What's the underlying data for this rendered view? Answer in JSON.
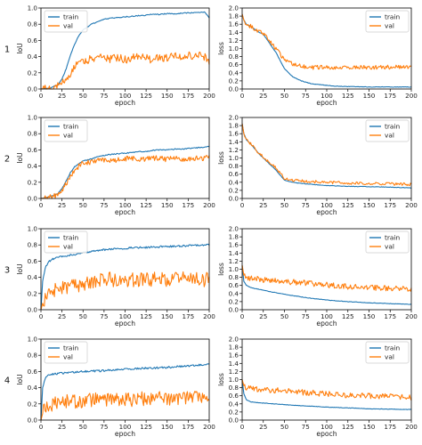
{
  "colors": {
    "train": "#1f77b4",
    "val": "#ff7f0e",
    "axes": "#000000",
    "legend_border": "#cccccc"
  },
  "chart_data": [
    {
      "type": "line",
      "row": "1",
      "panel": "left",
      "xlabel": "epoch",
      "ylabel": "IoU",
      "xlim": [
        0,
        200
      ],
      "ylim": [
        0,
        1.0
      ],
      "xticks": [
        "0",
        "25",
        "50",
        "75",
        "100",
        "125",
        "150",
        "175",
        "200"
      ],
      "yticks": [
        "0.0",
        "0.2",
        "0.4",
        "0.6",
        "0.8",
        "1.0"
      ],
      "legend_loc": "upper left",
      "grid": false,
      "x": [
        0,
        10,
        20,
        25,
        30,
        35,
        40,
        45,
        50,
        60,
        70,
        75,
        80,
        90,
        100,
        110,
        120,
        125,
        130,
        140,
        150,
        160,
        170,
        175,
        180,
        190,
        195,
        200
      ],
      "series": [
        {
          "name": "train",
          "values": [
            0.0,
            0.01,
            0.05,
            0.12,
            0.25,
            0.42,
            0.55,
            0.66,
            0.73,
            0.8,
            0.84,
            0.86,
            0.87,
            0.88,
            0.89,
            0.9,
            0.91,
            0.91,
            0.92,
            0.92,
            0.93,
            0.93,
            0.94,
            0.94,
            0.94,
            0.95,
            0.95,
            0.88
          ]
        },
        {
          "name": "val",
          "values": [
            0.0,
            0.01,
            0.03,
            0.06,
            0.12,
            0.2,
            0.27,
            0.32,
            0.35,
            0.37,
            0.38,
            0.4,
            0.37,
            0.39,
            0.36,
            0.4,
            0.38,
            0.41,
            0.37,
            0.4,
            0.38,
            0.41,
            0.39,
            0.42,
            0.38,
            0.41,
            0.4,
            0.35
          ]
        }
      ]
    },
    {
      "type": "line",
      "row": "1",
      "panel": "right",
      "xlabel": "epoch",
      "ylabel": "loss",
      "xlim": [
        0,
        200
      ],
      "ylim": [
        0,
        2.0
      ],
      "xticks": [
        "0",
        "25",
        "50",
        "75",
        "100",
        "125",
        "150",
        "175",
        "200"
      ],
      "yticks": [
        "0.0",
        "0.2",
        "0.4",
        "0.6",
        "0.8",
        "1.0",
        "1.2",
        "1.4",
        "1.6",
        "1.8",
        "2.0"
      ],
      "legend_loc": "upper right",
      "grid": false,
      "x": [
        0,
        2,
        5,
        10,
        20,
        25,
        30,
        40,
        50,
        60,
        70,
        75,
        80,
        90,
        100,
        110,
        125,
        150,
        175,
        200
      ],
      "series": [
        {
          "name": "train",
          "values": [
            1.85,
            1.7,
            1.6,
            1.55,
            1.4,
            1.35,
            1.2,
            0.9,
            0.5,
            0.3,
            0.2,
            0.17,
            0.14,
            0.11,
            0.09,
            0.07,
            0.06,
            0.05,
            0.05,
            0.05
          ]
        },
        {
          "name": "val",
          "values": [
            1.85,
            1.7,
            1.6,
            1.55,
            1.42,
            1.38,
            1.25,
            1.0,
            0.72,
            0.62,
            0.56,
            0.55,
            0.52,
            0.54,
            0.53,
            0.52,
            0.54,
            0.53,
            0.54,
            0.55
          ]
        }
      ]
    },
    {
      "type": "line",
      "row": "2",
      "panel": "left",
      "xlabel": "epoch",
      "ylabel": "IoU",
      "xlim": [
        0,
        200
      ],
      "ylim": [
        0,
        1.0
      ],
      "xticks": [
        "0",
        "25",
        "50",
        "75",
        "100",
        "125",
        "150",
        "175",
        "200"
      ],
      "yticks": [
        "0.0",
        "0.2",
        "0.4",
        "0.6",
        "0.8",
        "1.0"
      ],
      "legend_loc": "upper left",
      "grid": false,
      "x": [
        0,
        10,
        20,
        25,
        30,
        35,
        40,
        45,
        50,
        60,
        70,
        75,
        80,
        90,
        100,
        110,
        120,
        125,
        130,
        140,
        150,
        160,
        170,
        175,
        180,
        190,
        200
      ],
      "series": [
        {
          "name": "train",
          "values": [
            0.0,
            0.02,
            0.06,
            0.12,
            0.22,
            0.32,
            0.39,
            0.43,
            0.46,
            0.49,
            0.52,
            0.53,
            0.54,
            0.55,
            0.56,
            0.57,
            0.58,
            0.58,
            0.59,
            0.6,
            0.6,
            0.61,
            0.61,
            0.62,
            0.62,
            0.63,
            0.64
          ]
        },
        {
          "name": "val",
          "values": [
            0.0,
            0.01,
            0.04,
            0.09,
            0.18,
            0.28,
            0.36,
            0.4,
            0.43,
            0.45,
            0.47,
            0.48,
            0.47,
            0.48,
            0.49,
            0.49,
            0.48,
            0.5,
            0.49,
            0.5,
            0.48,
            0.5,
            0.49,
            0.5,
            0.49,
            0.5,
            0.5
          ]
        }
      ]
    },
    {
      "type": "line",
      "row": "2",
      "panel": "right",
      "xlabel": "epoch",
      "ylabel": "loss",
      "xlim": [
        0,
        200
      ],
      "ylim": [
        0,
        2.0
      ],
      "xticks": [
        "0",
        "25",
        "50",
        "75",
        "100",
        "125",
        "150",
        "175",
        "200"
      ],
      "yticks": [
        "0.0",
        "0.2",
        "0.4",
        "0.6",
        "0.8",
        "1.0",
        "1.2",
        "1.4",
        "1.6",
        "1.8",
        "2.0"
      ],
      "legend_loc": "upper right",
      "grid": false,
      "x": [
        0,
        2,
        5,
        10,
        20,
        25,
        30,
        40,
        50,
        60,
        75,
        100,
        125,
        150,
        175,
        200
      ],
      "series": [
        {
          "name": "train",
          "values": [
            1.85,
            1.6,
            1.45,
            1.35,
            1.1,
            1.0,
            0.9,
            0.7,
            0.45,
            0.4,
            0.36,
            0.32,
            0.3,
            0.29,
            0.28,
            0.26
          ]
        },
        {
          "name": "val",
          "values": [
            1.85,
            1.6,
            1.45,
            1.35,
            1.12,
            1.02,
            0.92,
            0.75,
            0.5,
            0.45,
            0.42,
            0.4,
            0.38,
            0.37,
            0.36,
            0.35
          ]
        }
      ]
    },
    {
      "type": "line",
      "row": "3",
      "panel": "left",
      "xlabel": "epoch",
      "ylabel": "IoU",
      "xlim": [
        0,
        200
      ],
      "ylim": [
        0,
        1.0
      ],
      "xticks": [
        "0",
        "25",
        "50",
        "75",
        "100",
        "125",
        "150",
        "175",
        "200"
      ],
      "yticks": [
        "0.0",
        "0.2",
        "0.4",
        "0.6",
        "0.8",
        "1.0"
      ],
      "legend_loc": "upper left",
      "grid": false,
      "x": [
        0,
        2,
        5,
        10,
        15,
        25,
        40,
        50,
        60,
        75,
        100,
        125,
        150,
        175,
        200
      ],
      "series": [
        {
          "name": "train",
          "values": [
            0.0,
            0.35,
            0.52,
            0.6,
            0.63,
            0.66,
            0.68,
            0.7,
            0.72,
            0.74,
            0.76,
            0.77,
            0.78,
            0.79,
            0.8
          ]
        },
        {
          "name": "val",
          "values": [
            0.0,
            0.08,
            0.14,
            0.18,
            0.24,
            0.28,
            0.3,
            0.32,
            0.35,
            0.38,
            0.36,
            0.38,
            0.37,
            0.38,
            0.37
          ]
        }
      ]
    },
    {
      "type": "line",
      "row": "3",
      "panel": "right",
      "xlabel": "epoch",
      "ylabel": "loss",
      "xlim": [
        0,
        200
      ],
      "ylim": [
        0,
        2.0
      ],
      "xticks": [
        "0",
        "25",
        "50",
        "75",
        "100",
        "125",
        "150",
        "175",
        "200"
      ],
      "yticks": [
        "0.0",
        "0.2",
        "0.4",
        "0.6",
        "0.8",
        "1.0",
        "1.2",
        "1.4",
        "1.6",
        "1.8",
        "2.0"
      ],
      "legend_loc": "upper right",
      "grid": false,
      "x": [
        0,
        2,
        5,
        10,
        25,
        50,
        75,
        100,
        125,
        150,
        175,
        200
      ],
      "series": [
        {
          "name": "train",
          "values": [
            1.1,
            0.7,
            0.6,
            0.55,
            0.48,
            0.38,
            0.3,
            0.24,
            0.2,
            0.17,
            0.15,
            0.13
          ]
        },
        {
          "name": "val",
          "values": [
            1.1,
            0.85,
            0.8,
            0.78,
            0.74,
            0.7,
            0.66,
            0.62,
            0.57,
            0.55,
            0.52,
            0.5
          ]
        }
      ]
    },
    {
      "type": "line",
      "row": "4",
      "panel": "left",
      "xlabel": "epoch",
      "ylabel": "IoU",
      "xlim": [
        0,
        200
      ],
      "ylim": [
        0,
        1.0
      ],
      "xticks": [
        "0",
        "25",
        "50",
        "75",
        "100",
        "125",
        "150",
        "175",
        "200"
      ],
      "yticks": [
        "0.0",
        "0.2",
        "0.4",
        "0.6",
        "0.8",
        "1.0"
      ],
      "legend_loc": "upper left",
      "grid": false,
      "x": [
        0,
        2,
        5,
        10,
        15,
        25,
        50,
        75,
        100,
        125,
        150,
        175,
        200
      ],
      "series": [
        {
          "name": "train",
          "values": [
            0.0,
            0.4,
            0.52,
            0.56,
            0.57,
            0.58,
            0.6,
            0.61,
            0.63,
            0.64,
            0.65,
            0.67,
            0.69
          ]
        },
        {
          "name": "val",
          "values": [
            0.0,
            0.08,
            0.14,
            0.17,
            0.2,
            0.22,
            0.24,
            0.26,
            0.25,
            0.27,
            0.26,
            0.27,
            0.27
          ]
        }
      ]
    },
    {
      "type": "line",
      "row": "4",
      "panel": "right",
      "xlabel": "epoch",
      "ylabel": "loss",
      "xlim": [
        0,
        200
      ],
      "ylim": [
        0,
        2.0
      ],
      "xticks": [
        "0",
        "25",
        "50",
        "75",
        "100",
        "125",
        "150",
        "175",
        "200"
      ],
      "yticks": [
        "0.0",
        "0.2",
        "0.4",
        "0.6",
        "0.8",
        "1.0",
        "1.2",
        "1.4",
        "1.6",
        "1.8",
        "2.0"
      ],
      "legend_loc": "upper right",
      "grid": false,
      "x": [
        0,
        2,
        5,
        10,
        25,
        50,
        75,
        100,
        125,
        150,
        175,
        200
      ],
      "series": [
        {
          "name": "train",
          "values": [
            1.0,
            0.65,
            0.5,
            0.45,
            0.42,
            0.38,
            0.35,
            0.32,
            0.3,
            0.28,
            0.27,
            0.26
          ]
        },
        {
          "name": "val",
          "values": [
            1.0,
            0.85,
            0.8,
            0.78,
            0.75,
            0.72,
            0.68,
            0.65,
            0.62,
            0.6,
            0.58,
            0.55
          ]
        }
      ]
    }
  ]
}
